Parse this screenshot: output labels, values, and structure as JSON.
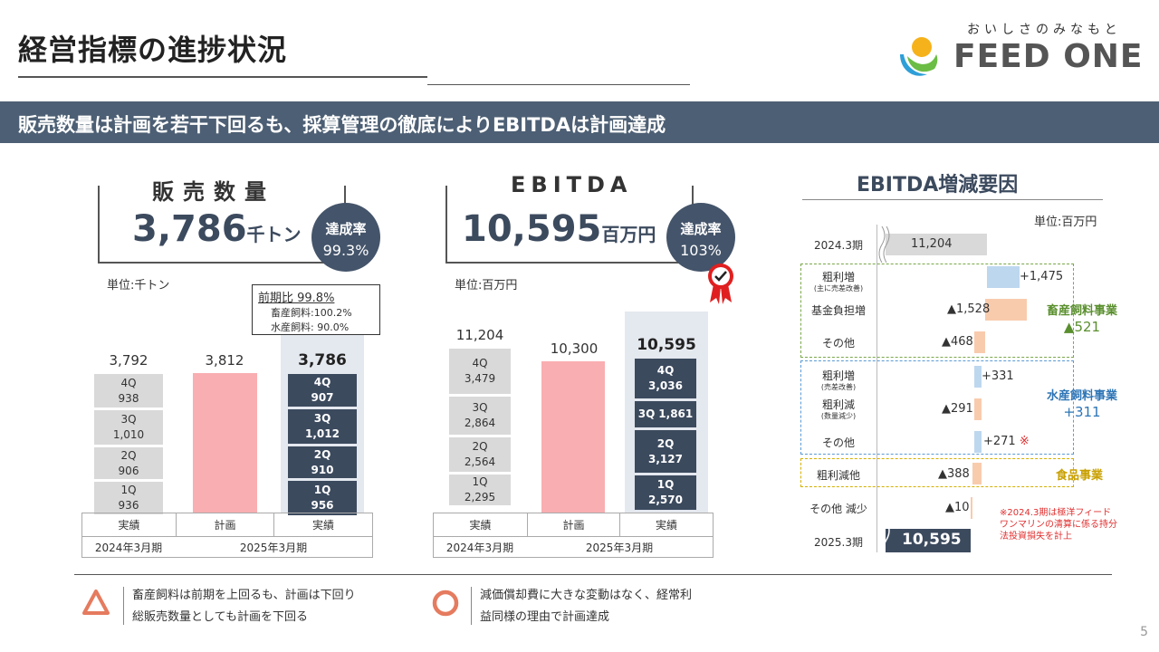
{
  "header": {
    "title": "経営指標の進捗状況",
    "logo_tagline": "おいしさのみなもと",
    "logo_name": "FEED ONE"
  },
  "banner": "販売数量は計画を若干下回るも、採算管理の徹底によりEBITDAは計画達成",
  "sales": {
    "label": "販売数量",
    "value": "3,786",
    "unit": "千トン",
    "rate_label": "達成率",
    "rate_value": "99.3%",
    "unit_note": "単位:千トン",
    "yoy_note": {
      "line1": "前期比  99.8%",
      "line2": "畜産飼料:100.2%",
      "line3": "水産飼料:  90.0%"
    },
    "prev_total": "3,792",
    "plan_total": "3,812",
    "actual_total": "3,786",
    "prev_segments": [
      {
        "q": "4Q",
        "v": "938"
      },
      {
        "q": "3Q",
        "v": "1,010"
      },
      {
        "q": "2Q",
        "v": "906"
      },
      {
        "q": "1Q",
        "v": "936"
      }
    ],
    "actual_segments": [
      {
        "q": "4Q",
        "v": "907"
      },
      {
        "q": "3Q",
        "v": "1,012"
      },
      {
        "q": "2Q",
        "v": "910"
      },
      {
        "q": "1Q",
        "v": "956"
      }
    ],
    "cols": [
      "実績",
      "計画",
      "実績"
    ],
    "years": [
      "2024年3月期",
      "2025年3月期"
    ]
  },
  "ebitda": {
    "label": "EBITDA",
    "value": "10,595",
    "unit": "百万円",
    "rate_label": "達成率",
    "rate_value": "103%",
    "unit_note": "単位:百万円",
    "prev_total": "11,204",
    "plan_total": "10,300",
    "actual_total": "10,595",
    "prev_segments": [
      {
        "q": "4Q",
        "v": "3,479"
      },
      {
        "q": "3Q",
        "v": "2,864"
      },
      {
        "q": "2Q",
        "v": "2,564"
      },
      {
        "q": "1Q",
        "v": "2,295"
      }
    ],
    "actual_segments": [
      {
        "q": "4Q",
        "v": "3,036"
      },
      {
        "q": "3Q",
        "v": "1,861"
      },
      {
        "q": "2Q",
        "v": "3,127"
      },
      {
        "q": "1Q",
        "v": "2,570"
      }
    ],
    "cols": [
      "実績",
      "計画",
      "実績"
    ],
    "years": [
      "2024年3月期",
      "2025年3月期"
    ],
    "badge_icon": "check-icon"
  },
  "waterfall": {
    "title": "EBITDA増減要因",
    "unit": "単位:百万円",
    "start_label": "2024.3期",
    "start_value": "11,204",
    "end_label": "2025.3期",
    "end_value": "10,595",
    "rows": [
      {
        "label": "粗利増",
        "sub": "(主に売差改善)",
        "value": "+1,475"
      },
      {
        "label": "基金負担増",
        "sub": "",
        "value": "▲1,528"
      },
      {
        "label": "その他",
        "sub": "",
        "value": "▲468"
      },
      {
        "label": "粗利増",
        "sub": "(売差改善)",
        "value": "+331"
      },
      {
        "label": "粗利減",
        "sub": "(数量減少)",
        "value": "▲291"
      },
      {
        "label": "その他",
        "sub": "",
        "value": "+271",
        "mark": "※"
      },
      {
        "label": "粗利減他",
        "sub": "",
        "value": "▲388"
      },
      {
        "label": "その他 減少",
        "sub": "",
        "value": "▲10"
      }
    ],
    "groups": {
      "livestock": {
        "name": "畜産飼料事業",
        "value": "▲521",
        "color": "#5a8f2e"
      },
      "aqua": {
        "name": "水産飼料事業",
        "value": "+311",
        "color": "#2e75b6"
      },
      "food": {
        "name": "食品事業",
        "color": "#c9a000"
      }
    },
    "note": {
      "l1": "※2024.3期は極洋フィード",
      "l2": "ワンマリンの清算に係る持分",
      "l3": "法投資損失を計上"
    }
  },
  "summary": [
    {
      "icon": "triangle-icon",
      "l1": "畜産飼料は前期を上回るも、計画は下回り",
      "l2": "総販売数量としても計画を下回る"
    },
    {
      "icon": "circle-icon",
      "l1": "減価償却費に大きな変動はなく、経常利",
      "l2": "益同様の理由で計画達成"
    }
  ],
  "page_number": "5",
  "colors": {
    "navy": "#3c4a5e",
    "banner": "#4d5f74",
    "plan_pink": "#f9aeb1",
    "gray": "#d9d9d9",
    "salmon": "#e57b5f"
  }
}
